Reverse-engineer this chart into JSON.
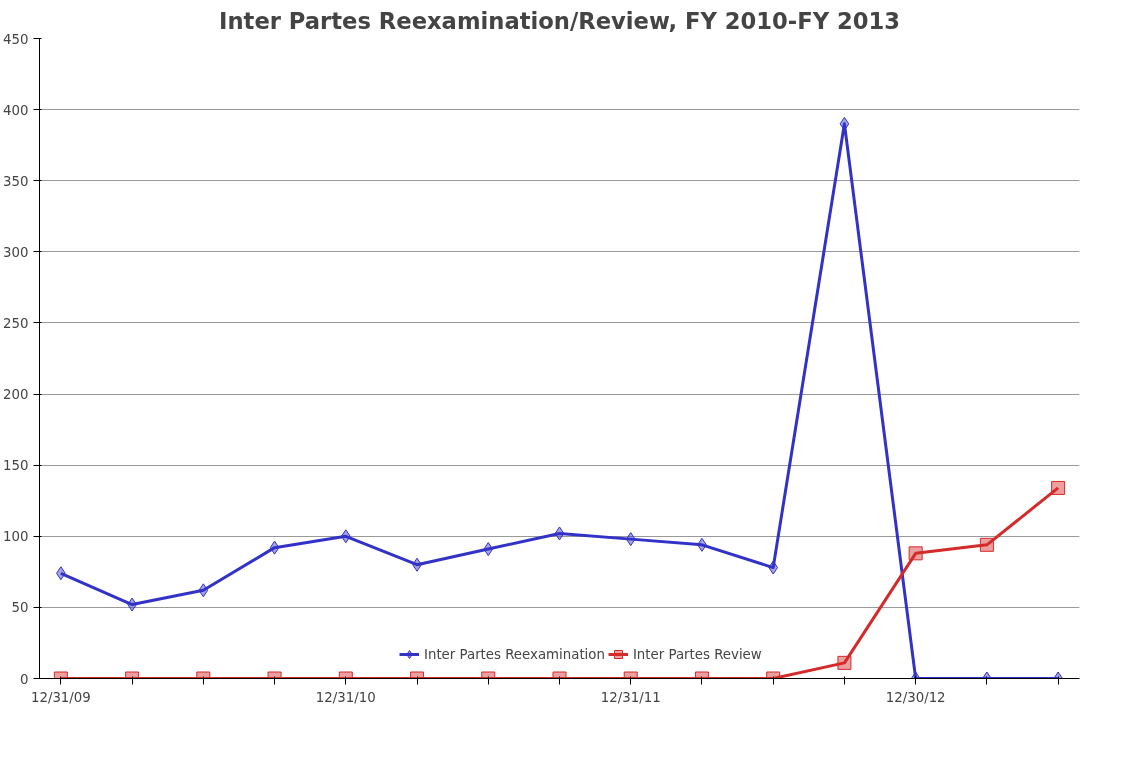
{
  "chart_data": {
    "type": "line",
    "title": "Inter Partes Reexamination/Review, FY 2010-FY 2013",
    "categories": [
      "12/31/09",
      null,
      null,
      null,
      "12/31/10",
      null,
      null,
      null,
      "12/31/11",
      null,
      null,
      null,
      "12/30/12",
      null,
      null
    ],
    "series": [
      {
        "name": "Inter Partes Reexamination",
        "color": "#3232c8",
        "marker": "diamond",
        "values": [
          74,
          52,
          62,
          92,
          100,
          80,
          91,
          102,
          98,
          94,
          78,
          390,
          0,
          0,
          0
        ]
      },
      {
        "name": "Inter Partes Review",
        "color": "#d42a2a",
        "marker": "square",
        "values": [
          0,
          0,
          0,
          0,
          0,
          0,
          0,
          0,
          0,
          0,
          0,
          11,
          88,
          94,
          134
        ]
      }
    ],
    "ylim": [
      0,
      450
    ],
    "yticks": [
      0,
      50,
      100,
      150,
      200,
      250,
      300,
      350,
      400,
      450
    ],
    "grid": "y",
    "legend": "bottom",
    "line_style": "solid"
  }
}
